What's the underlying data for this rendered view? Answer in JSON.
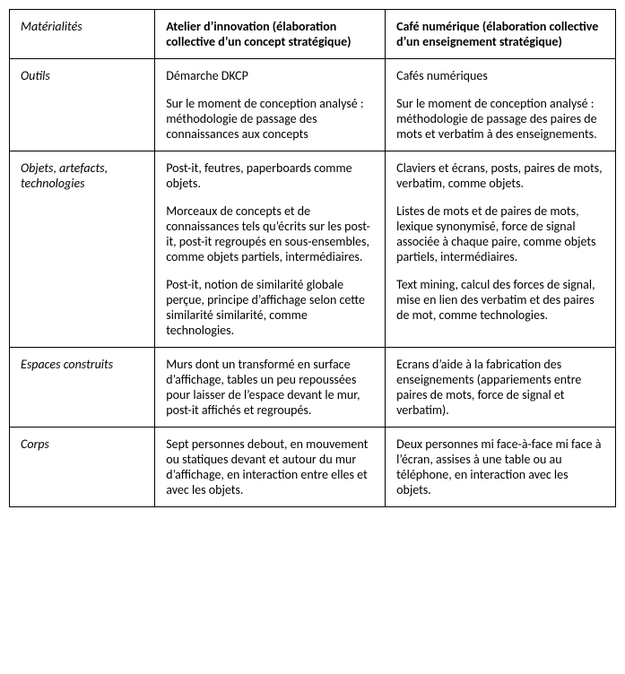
{
  "table": {
    "columns": [
      {
        "label": "Matérialités",
        "style": "italic"
      },
      {
        "label": "Atelier d’innovation (élaboration collective d’un concept stratégique)",
        "style": "bold"
      },
      {
        "label": "Café numérique (élaboration collective d’un enseignement stratégique)",
        "style": "bold"
      }
    ],
    "rows": [
      {
        "label": "Outils",
        "col_a": [
          "Démarche DKCP",
          "Sur le moment de conception analysé : méthodologie de passage des connaissances aux concepts"
        ],
        "col_b": [
          "Cafés numériques",
          "Sur le moment de conception analysé : méthodologie de passage des paires de mots et verbatim à des enseignements."
        ]
      },
      {
        "label": "Objets, artefacts, technologies",
        "col_a": [
          "Post-it, feutres, paperboards comme objets.",
          "Morceaux de concepts et de connaissances tels qu’écrits sur les post-it, post-it regroupés en sous-ensembles, comme objets partiels, intermédiaires.",
          "Post-it, notion de similarité globale perçue, principe d’affichage selon cette similarité similarité, comme technologies."
        ],
        "col_b": [
          "Claviers et écrans, posts, paires de mots, verbatim, comme objets.",
          "Listes de mots et de paires de mots, lexique synonymisé, force de signal associée à chaque paire, comme objets partiels, intermédiaires.",
          "Text mining, calcul des forces de signal, mise en lien des verbatim et des paires de mot, comme technologies."
        ]
      },
      {
        "label": "Espaces construits",
        "col_a": [
          "Murs dont un transformé en surface d’affichage, tables un peu repoussées pour laisser de l’espace devant le mur, post-it affichés et regroupés."
        ],
        "col_b": [
          "Ecrans d’aide à la fabrication des enseignements (appariements entre paires de mots, force de signal et verbatim)."
        ]
      },
      {
        "label": "Corps",
        "col_a": [
          "Sept personnes debout, en mouvement ou statiques devant et autour du mur d’affichage, en interaction entre elles et avec les objets."
        ],
        "col_b": [
          "Deux personnes mi face-à-face mi face à l’écran, assises à une table ou au téléphone, en interaction avec les objets."
        ]
      }
    ]
  },
  "style": {
    "font_family": "Calibri, Arial, sans-serif",
    "font_size_pt": 11,
    "text_color": "#000000",
    "border_color": "#000000",
    "background_color": "#ffffff",
    "col_widths_pct": [
      24,
      38,
      38
    ]
  }
}
